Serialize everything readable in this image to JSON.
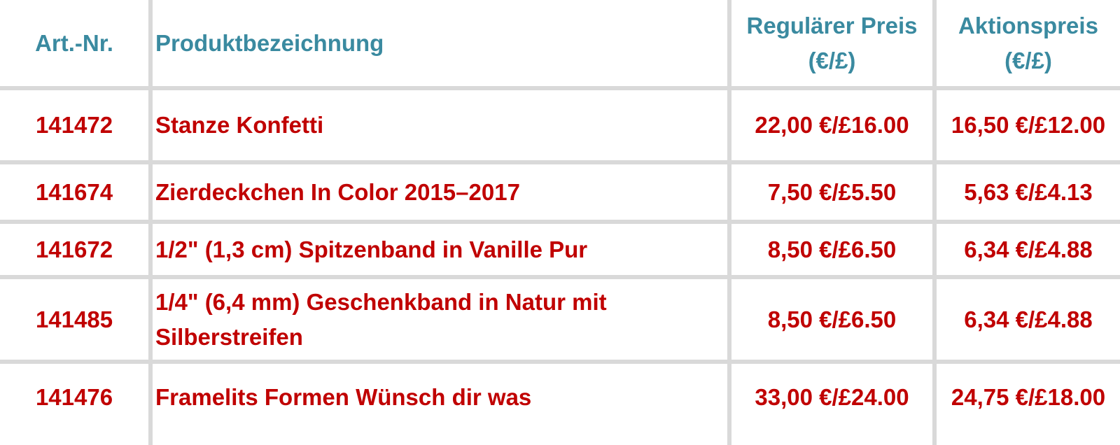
{
  "header": {
    "art_nr": "Art.-Nr.",
    "name": "Produktbezeichnung",
    "regular_price_line1": "Regulärer Preis",
    "regular_price_line2": "(€/£)",
    "action_price_line1": "Aktionspreis",
    "action_price_line2": "(€/£)"
  },
  "rows": [
    {
      "art_nr": "141472",
      "name": "Stanze Konfetti",
      "regular": "22,00 €/£16.00",
      "action": "16,50 €/£12.00"
    },
    {
      "art_nr": "141674",
      "name": "Zierdeckchen In Color 2015–2017",
      "regular": "7,50 €/£5.50",
      "action": "5,63 €/£4.13"
    },
    {
      "art_nr": "141672",
      "name": "1/2\" (1,3 cm) Spitzenband in Vanille Pur",
      "regular": "8,50 €/£6.50",
      "action": "6,34 €/£4.88"
    },
    {
      "art_nr": "141485",
      "name_line1": "1/4\" (6,4 mm) Geschenkband in Natur mit",
      "name_line2": "Silberstreifen",
      "regular": "8,50 €/£6.50",
      "action": "6,34 €/£4.88"
    },
    {
      "art_nr": "141476",
      "name": "Framelits Formen Wünsch dir was",
      "regular": "33,00 €/£24.00",
      "action": "24,75 €/£18.00"
    }
  ],
  "colors": {
    "header_text": "#3a8aa0",
    "data_text": "#c00000",
    "grid_lines": "#d9d9d9"
  }
}
